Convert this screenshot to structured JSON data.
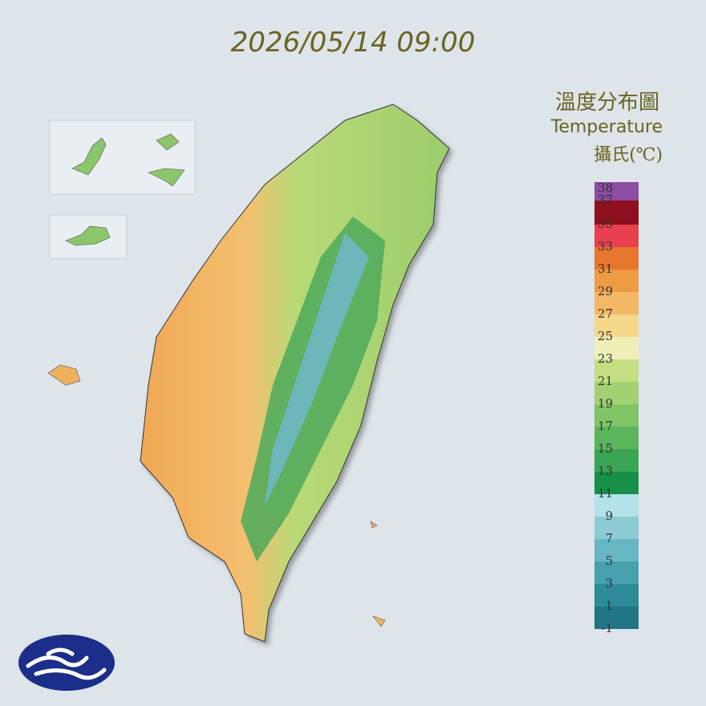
{
  "header": {
    "timestamp": "2026/05/14 09:00"
  },
  "legend": {
    "title": "溫度分布圖",
    "subtitle": "Temperature",
    "unit": "攝氏(℃)",
    "ticks": [
      -1,
      1,
      3,
      5,
      7,
      9,
      11,
      13,
      15,
      17,
      19,
      21,
      23,
      25,
      27,
      29,
      31,
      33,
      35,
      37,
      38
    ],
    "colors": [
      "#1f7584",
      "#2e8b9a",
      "#46a0ae",
      "#66b7c3",
      "#8ccbd4",
      "#b3e2e8",
      "#17914a",
      "#3aa554",
      "#5bb55c",
      "#80c466",
      "#a3d171",
      "#c4df82",
      "#eef0b8",
      "#f5d88a",
      "#f2b865",
      "#ef9b45",
      "#e8772e",
      "#e8404e",
      "#8e0f1e",
      "#8d4da3"
    ]
  }
}
